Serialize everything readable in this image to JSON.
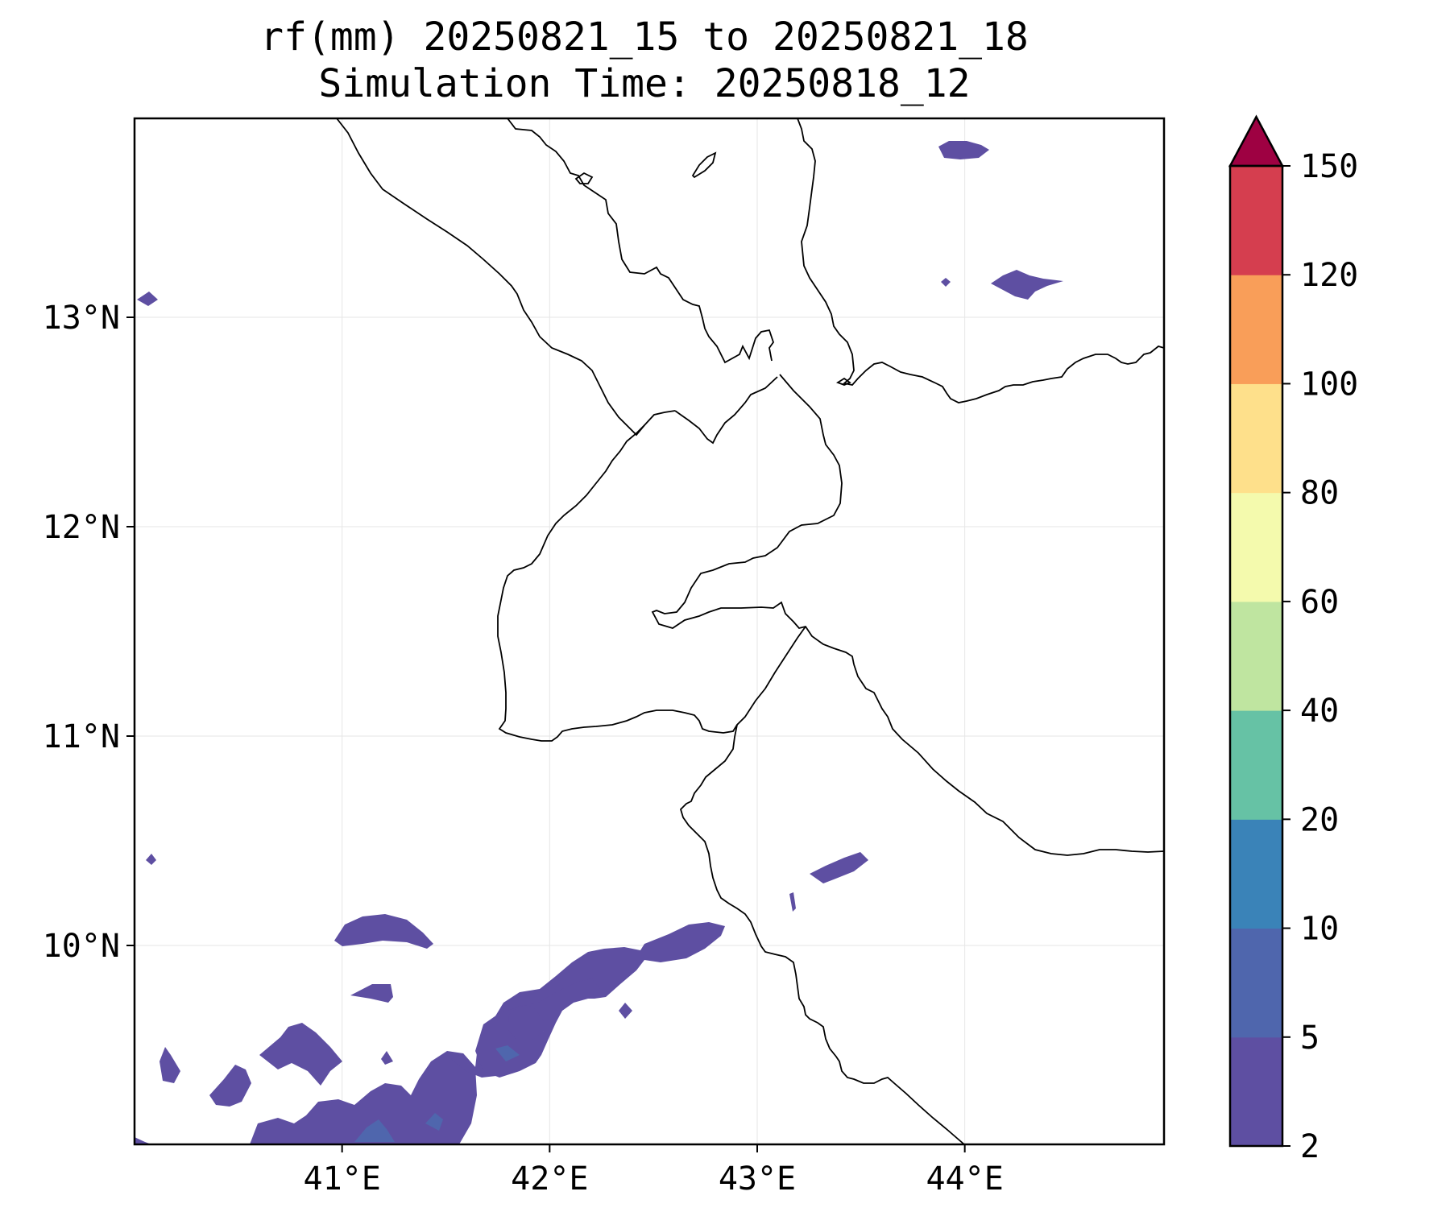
{
  "title": {
    "line1": "rf(mm) 20250821_15 to 20250821_18",
    "line2": "Simulation Time: 20250818_12"
  },
  "map": {
    "lon_range": [
      40.0,
      44.96
    ],
    "lat_range": [
      9.05,
      13.95
    ],
    "x_ticks": [
      {
        "value": 41,
        "label": "41°E"
      },
      {
        "value": 42,
        "label": "42°E"
      },
      {
        "value": 43,
        "label": "43°E"
      },
      {
        "value": 44,
        "label": "44°E"
      }
    ],
    "y_ticks": [
      {
        "value": 13,
        "label": "13°N"
      },
      {
        "value": 12,
        "label": "12°N"
      },
      {
        "value": 11,
        "label": "11°N"
      },
      {
        "value": 10,
        "label": "10°N"
      }
    ],
    "grid": true
  },
  "colorbar": {
    "levels": [
      2,
      5,
      10,
      20,
      40,
      60,
      80,
      100,
      120,
      150
    ],
    "labels": [
      "2",
      "5",
      "10",
      "20",
      "40",
      "60",
      "80",
      "100",
      "120",
      "150"
    ],
    "colors": [
      "#5e4fa2",
      "#4f66ad",
      "#3a83b8",
      "#66c2a5",
      "#bfe5a0",
      "#f4faad",
      "#fee08b",
      "#f99e59",
      "#d53e4f"
    ],
    "extend_color": "#9e0142",
    "extend": "max"
  }
}
